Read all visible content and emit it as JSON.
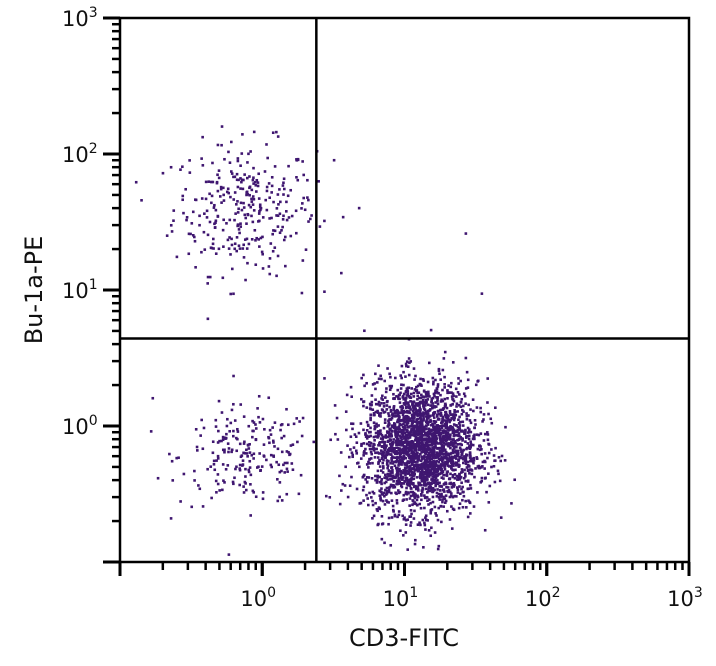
{
  "chart_data": {
    "type": "scatter",
    "xlabel": "CD3-FITC",
    "ylabel": "Bu-1a-PE",
    "x_scale": "log",
    "y_scale": "log",
    "xlim": [
      0.1,
      1000
    ],
    "ylim": [
      0.1,
      1000
    ],
    "x_ticks": [
      {
        "base": "10",
        "exp": "0",
        "value": 1
      },
      {
        "base": "10",
        "exp": "1",
        "value": 10
      },
      {
        "base": "10",
        "exp": "2",
        "value": 100
      },
      {
        "base": "10",
        "exp": "3",
        "value": 1000
      }
    ],
    "y_ticks": [
      {
        "base": "10",
        "exp": "0",
        "value": 1
      },
      {
        "base": "10",
        "exp": "1",
        "value": 10
      },
      {
        "base": "10",
        "exp": "2",
        "value": 100
      },
      {
        "base": "10",
        "exp": "3",
        "value": 1000
      }
    ],
    "grid": false,
    "quadrant_gates": {
      "x": 2.4,
      "y": 4.4
    },
    "point_color": "#3f1670",
    "populations": [
      {
        "quadrant": "upper-left",
        "x_center": 0.75,
        "y_center": 40,
        "x_spread_decades": 0.25,
        "y_spread_decades": 0.24,
        "count": 320
      },
      {
        "quadrant": "lower-left",
        "x_center": 0.8,
        "y_center": 0.6,
        "x_spread_decades": 0.24,
        "y_spread_decades": 0.18,
        "count": 220
      },
      {
        "quadrant": "lower-right",
        "x_center": 13,
        "y_center": 0.7,
        "x_spread_decades": 0.2,
        "y_spread_decades": 0.24,
        "count": 2600
      }
    ],
    "outliers": [
      [
        3.2,
        90
      ],
      [
        4.8,
        40
      ],
      [
        27,
        26
      ],
      [
        35,
        9.4
      ],
      [
        0.17,
        1.6
      ],
      [
        1.9,
        9.5
      ],
      [
        0.13,
        62
      ]
    ]
  }
}
